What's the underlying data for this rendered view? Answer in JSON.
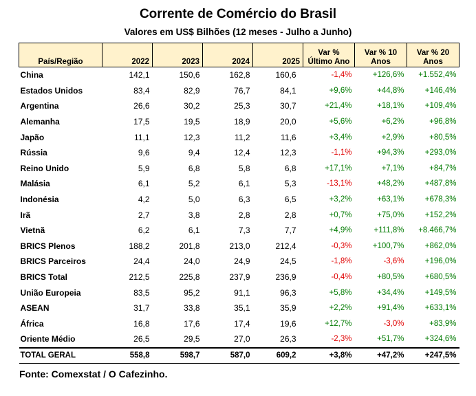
{
  "title": "Corrente de Comércio do Brasil",
  "subtitle": "Valores em US$ Bilhões (12 meses - Julho a Junho)",
  "headers": {
    "region": "País/Região",
    "y2022": "2022",
    "y2023": "2023",
    "y2024": "2024",
    "y2025": "2025",
    "var1_line1": "Var %",
    "var1_line2": "Último Ano",
    "var10_line1": "Var % 10",
    "var10_line2": "Anos",
    "var20_line1": "Var % 20",
    "var20_line2": "Anos"
  },
  "rows": [
    {
      "name": "China",
      "y2022": "142,1",
      "y2023": "150,6",
      "y2024": "162,8",
      "y2025": "160,6",
      "var1": "-1,4%",
      "var10": "+126,6%",
      "var20": "+1.552,4%"
    },
    {
      "name": "Estados Unidos",
      "y2022": "83,4",
      "y2023": "82,9",
      "y2024": "76,7",
      "y2025": "84,1",
      "var1": "+9,6%",
      "var10": "+44,8%",
      "var20": "+146,4%"
    },
    {
      "name": "Argentina",
      "y2022": "26,6",
      "y2023": "30,2",
      "y2024": "25,3",
      "y2025": "30,7",
      "var1": "+21,4%",
      "var10": "+18,1%",
      "var20": "+109,4%"
    },
    {
      "name": "Alemanha",
      "y2022": "17,5",
      "y2023": "19,5",
      "y2024": "18,9",
      "y2025": "20,0",
      "var1": "+5,6%",
      "var10": "+6,2%",
      "var20": "+96,8%"
    },
    {
      "name": "Japão",
      "y2022": "11,1",
      "y2023": "12,3",
      "y2024": "11,2",
      "y2025": "11,6",
      "var1": "+3,4%",
      "var10": "+2,9%",
      "var20": "+80,5%"
    },
    {
      "name": "Rússia",
      "y2022": "9,6",
      "y2023": "9,4",
      "y2024": "12,4",
      "y2025": "12,3",
      "var1": "-1,1%",
      "var10": "+94,3%",
      "var20": "+293,0%"
    },
    {
      "name": "Reino Unido",
      "y2022": "5,9",
      "y2023": "6,8",
      "y2024": "5,8",
      "y2025": "6,8",
      "var1": "+17,1%",
      "var10": "+7,1%",
      "var20": "+84,7%"
    },
    {
      "name": "Malásia",
      "y2022": "6,1",
      "y2023": "5,2",
      "y2024": "6,1",
      "y2025": "5,3",
      "var1": "-13,1%",
      "var10": "+48,2%",
      "var20": "+487,8%"
    },
    {
      "name": "Indonésia",
      "y2022": "4,2",
      "y2023": "5,0",
      "y2024": "6,3",
      "y2025": "6,5",
      "var1": "+3,2%",
      "var10": "+63,1%",
      "var20": "+678,3%"
    },
    {
      "name": "Irã",
      "y2022": "2,7",
      "y2023": "3,8",
      "y2024": "2,8",
      "y2025": "2,8",
      "var1": "+0,7%",
      "var10": "+75,0%",
      "var20": "+152,2%"
    },
    {
      "name": "Vietnã",
      "y2022": "6,2",
      "y2023": "6,1",
      "y2024": "7,3",
      "y2025": "7,7",
      "var1": "+4,9%",
      "var10": "+111,8%",
      "var20": "+8.466,7%"
    },
    {
      "name": "BRICS Plenos",
      "y2022": "188,2",
      "y2023": "201,8",
      "y2024": "213,0",
      "y2025": "212,4",
      "var1": "-0,3%",
      "var10": "+100,7%",
      "var20": "+862,0%"
    },
    {
      "name": "BRICS Parceiros",
      "y2022": "24,4",
      "y2023": "24,0",
      "y2024": "24,9",
      "y2025": "24,5",
      "var1": "-1,8%",
      "var10": "-3,6%",
      "var20": "+196,0%"
    },
    {
      "name": "BRICS Total",
      "y2022": "212,5",
      "y2023": "225,8",
      "y2024": "237,9",
      "y2025": "236,9",
      "var1": "-0,4%",
      "var10": "+80,5%",
      "var20": "+680,5%"
    },
    {
      "name": "União Europeia",
      "y2022": "83,5",
      "y2023": "95,2",
      "y2024": "91,1",
      "y2025": "96,3",
      "var1": "+5,8%",
      "var10": "+34,4%",
      "var20": "+149,5%"
    },
    {
      "name": "ASEAN",
      "y2022": "31,7",
      "y2023": "33,8",
      "y2024": "35,1",
      "y2025": "35,9",
      "var1": "+2,2%",
      "var10": "+91,4%",
      "var20": "+633,1%"
    },
    {
      "name": "África",
      "y2022": "16,8",
      "y2023": "17,6",
      "y2024": "17,4",
      "y2025": "19,6",
      "var1": "+12,7%",
      "var10": "-3,0%",
      "var20": "+83,9%"
    },
    {
      "name": "Oriente Médio",
      "y2022": "26,5",
      "y2023": "29,5",
      "y2024": "27,0",
      "y2025": "26,3",
      "var1": "-2,3%",
      "var10": "+51,7%",
      "var20": "+324,6%"
    }
  ],
  "total": {
    "name": "TOTAL GERAL",
    "y2022": "558,8",
    "y2023": "598,7",
    "y2024": "587,0",
    "y2025": "609,2",
    "var1": "+3,8%",
    "var10": "+47,2%",
    "var20": "+247,5%"
  },
  "source": "Fonte: Comexstat / O Cafezinho.",
  "colors": {
    "header_bg": "#fff2cc",
    "positive": "#007a00",
    "negative": "#e00000"
  }
}
